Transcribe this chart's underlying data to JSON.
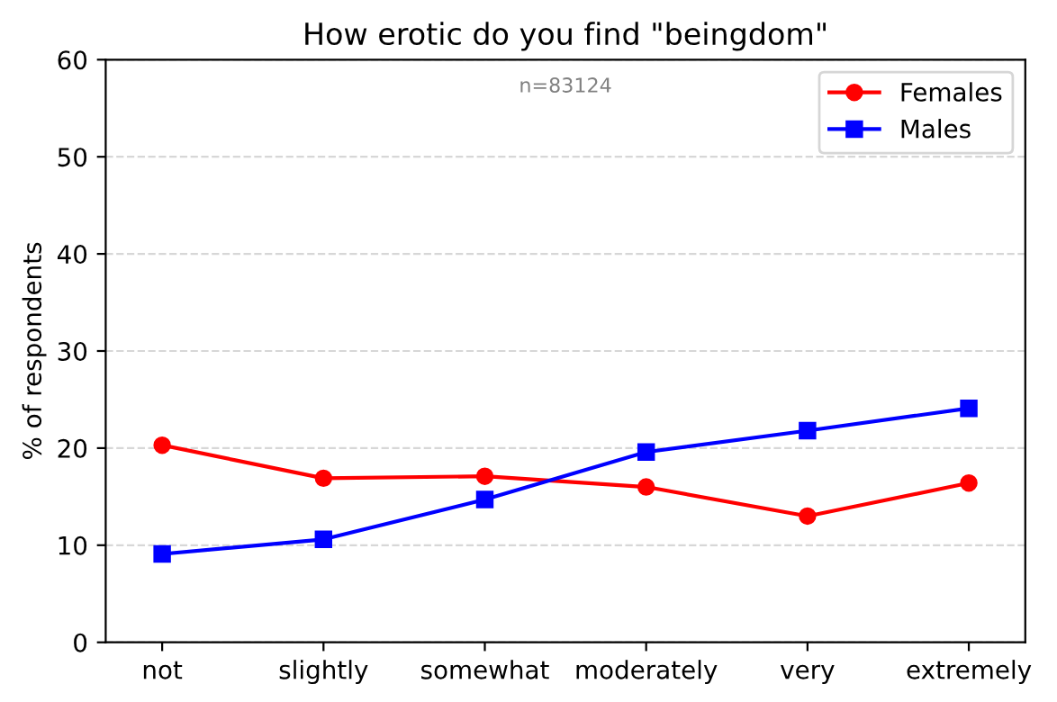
{
  "chart_data": {
    "type": "line",
    "title": "How erotic do you find \"beingdom\"",
    "ylabel": "% of respondents",
    "categories": [
      "not",
      "slightly",
      "somewhat",
      "moderately",
      "very",
      "extremely"
    ],
    "series": [
      {
        "name": "Females",
        "color": "#ff0000",
        "marker": "circle",
        "values": [
          20.3,
          16.9,
          17.1,
          16.0,
          13.0,
          16.4
        ]
      },
      {
        "name": "Males",
        "color": "#0000ff",
        "marker": "square",
        "values": [
          9.1,
          10.6,
          14.7,
          19.6,
          21.8,
          24.1
        ]
      }
    ],
    "ylim": [
      0,
      60
    ],
    "yticks": [
      0,
      10,
      20,
      30,
      40,
      50,
      60
    ],
    "grid": "y",
    "legend": "top right",
    "annotations": [
      "n=83124"
    ],
    "line_style": "solid"
  }
}
